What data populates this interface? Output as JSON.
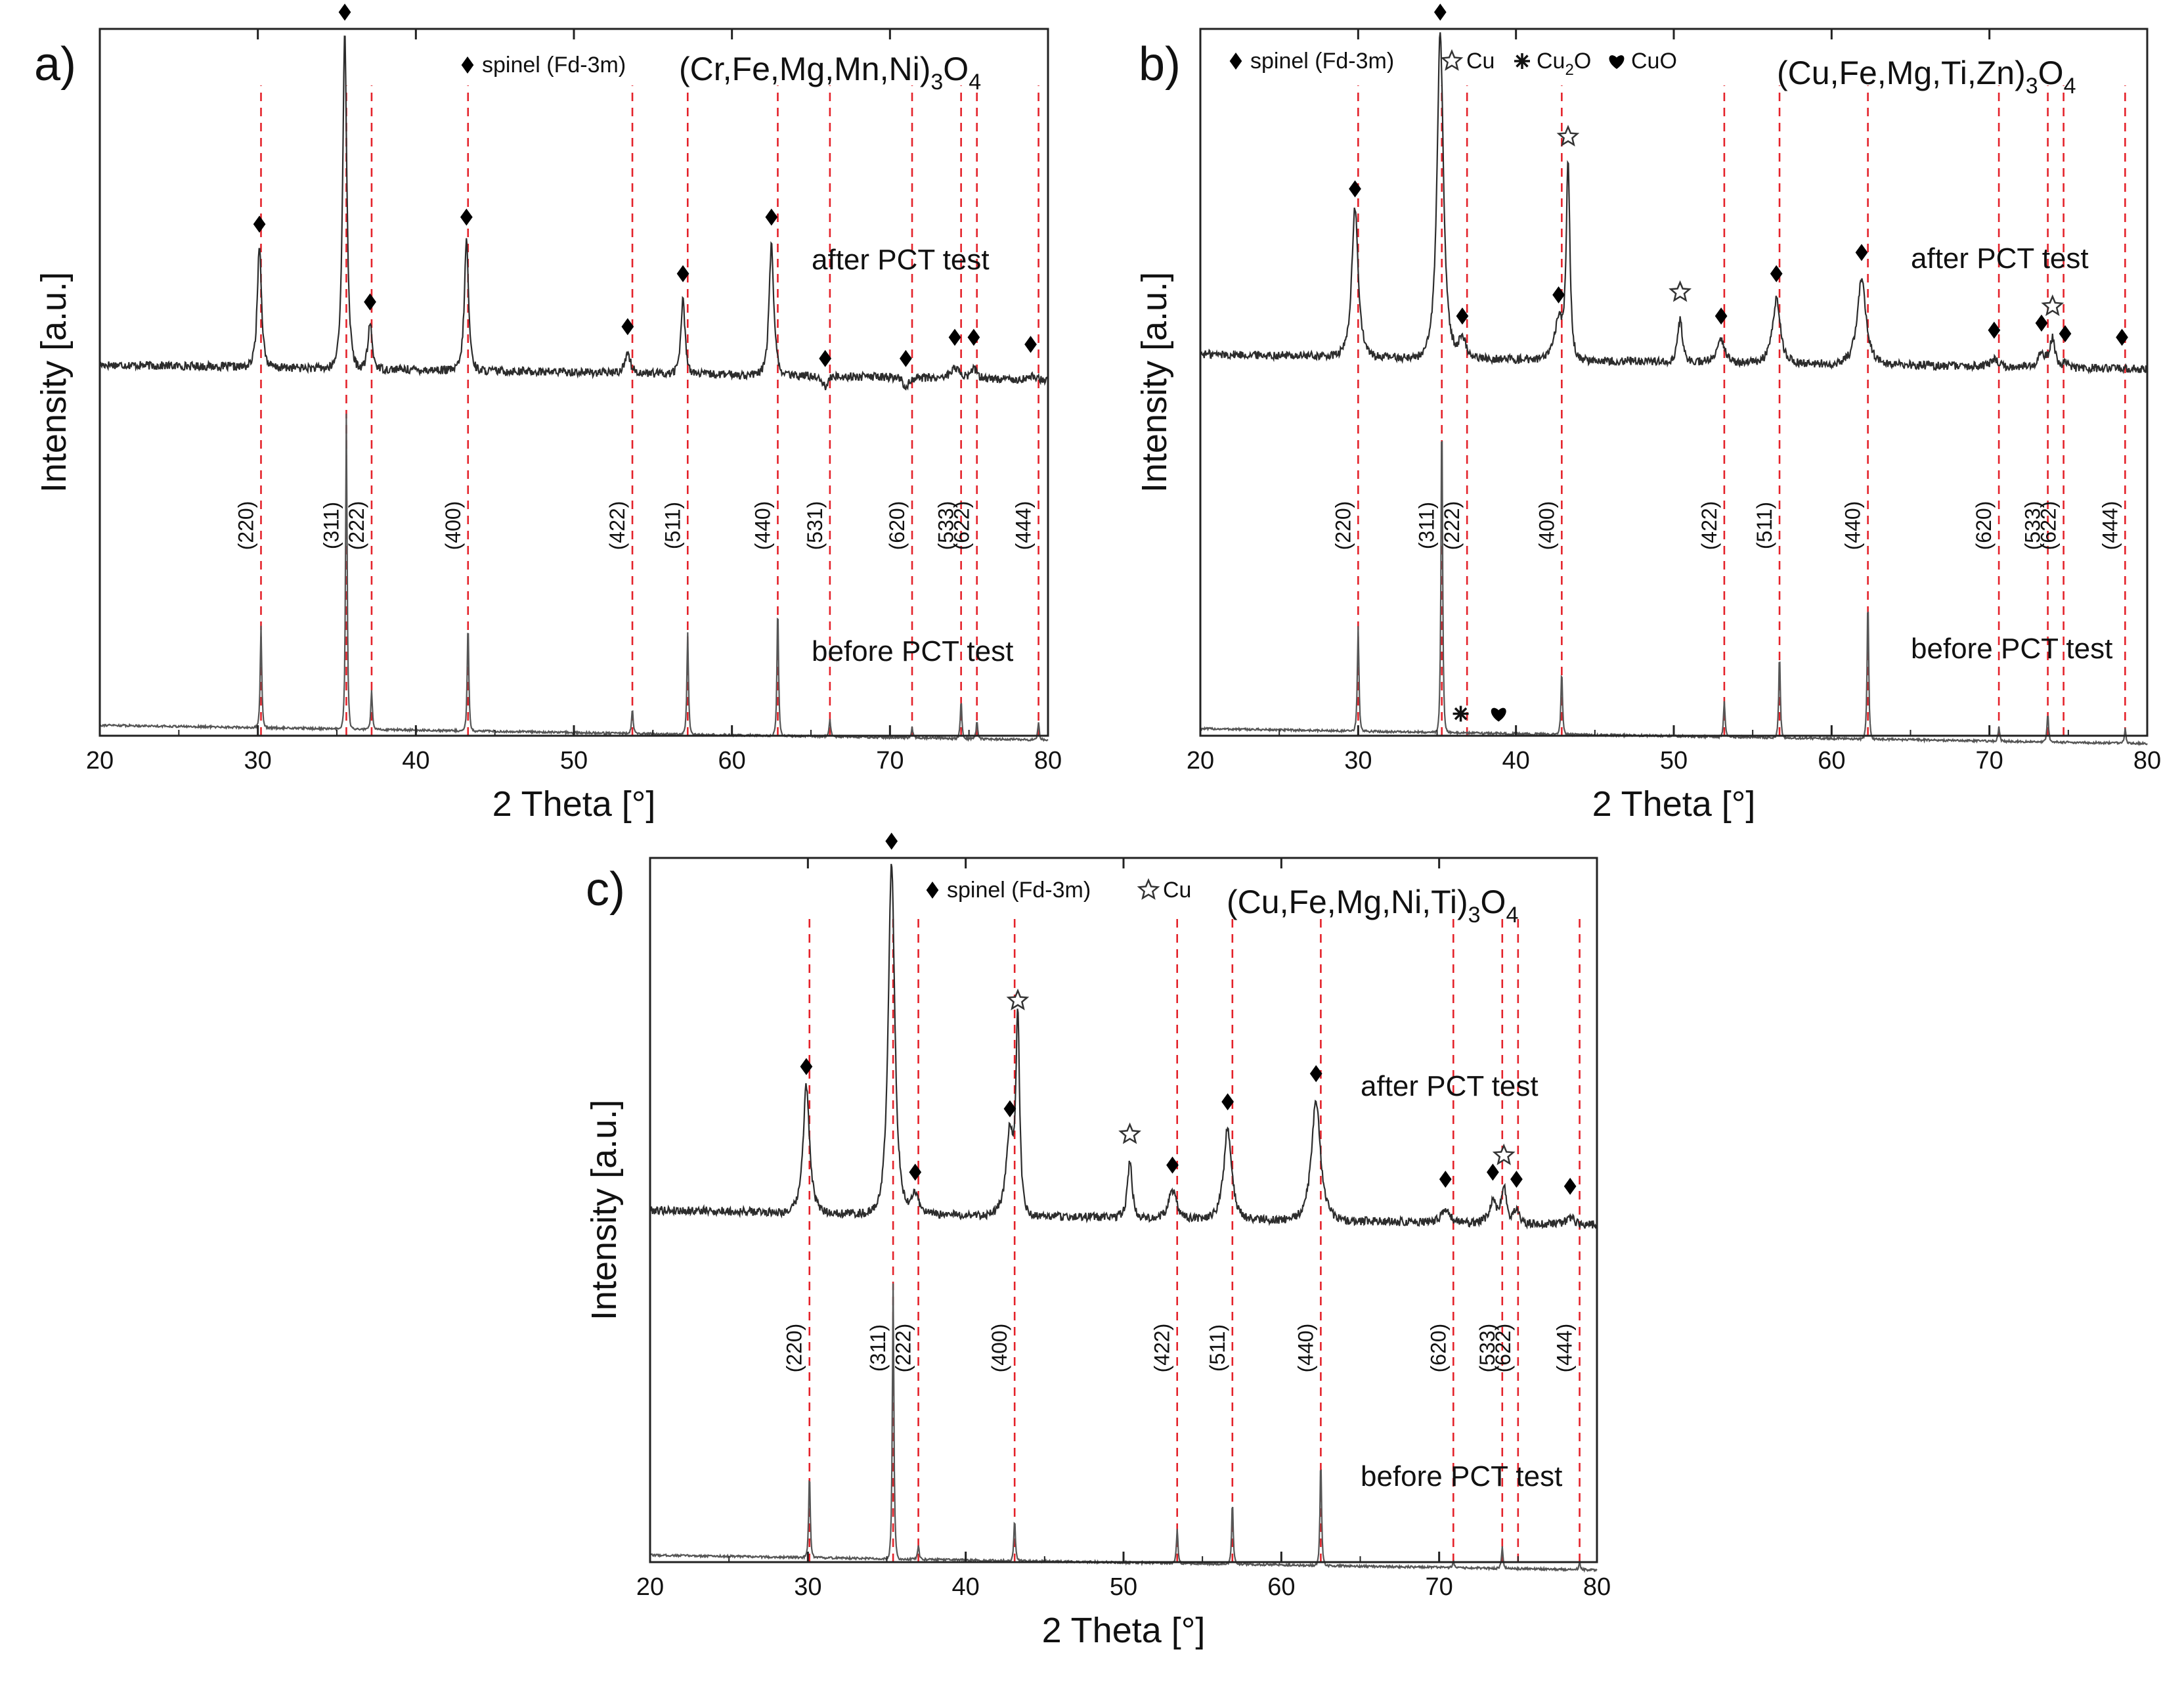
{
  "figure": {
    "chart_data": [
      {
        "type": "line",
        "panel_label": "a)",
        "formula": {
          "prefix": "(Cr,Fe,Mg,Mn,Ni)",
          "sub": "3",
          "mid": "O",
          "sub2": "4"
        },
        "xlabel": "2 Theta [°]",
        "ylabel": "Intensity [a.u.]",
        "xlim": [
          20,
          80
        ],
        "xticks": [
          20,
          30,
          40,
          50,
          60,
          70,
          80
        ],
        "legend": [
          {
            "symbol": "diamond",
            "label": "spinel (Fd-3m)"
          }
        ],
        "curve_labels": {
          "after": "after PCT test",
          "before": "before PCT test"
        },
        "reflections": [
          {
            "hkl": "(220)",
            "two_theta": 30.2
          },
          {
            "hkl": "(311)",
            "two_theta": 35.6
          },
          {
            "hkl": "(222)",
            "two_theta": 37.2
          },
          {
            "hkl": "(400)",
            "two_theta": 43.3
          },
          {
            "hkl": "(422)",
            "two_theta": 53.7
          },
          {
            "hkl": "(511)",
            "two_theta": 57.2
          },
          {
            "hkl": "(440)",
            "two_theta": 62.9
          },
          {
            "hkl": "(531)",
            "two_theta": 66.2
          },
          {
            "hkl": "(620)",
            "two_theta": 71.4
          },
          {
            "hkl": "(533)",
            "two_theta": 74.5
          },
          {
            "hkl": "(622)",
            "two_theta": 75.5
          },
          {
            "hkl": "(444)",
            "two_theta": 79.4
          }
        ],
        "after_baseline": 0.525,
        "after_peaks": [
          {
            "two_theta": 30.1,
            "height": 0.7,
            "width": 0.16,
            "phase": "spinel"
          },
          {
            "two_theta": 35.5,
            "height": 1.0,
            "width": 0.16,
            "phase": "spinel"
          },
          {
            "two_theta": 37.1,
            "height": 0.59,
            "width": 0.16,
            "phase": "spinel"
          },
          {
            "two_theta": 43.2,
            "height": 0.71,
            "width": 0.16,
            "phase": "spinel"
          },
          {
            "two_theta": 53.4,
            "height": 0.555,
            "width": 0.2,
            "phase": "spinel"
          },
          {
            "two_theta": 56.9,
            "height": 0.63,
            "width": 0.16,
            "phase": "spinel"
          },
          {
            "two_theta": 62.5,
            "height": 0.71,
            "width": 0.18,
            "phase": "spinel"
          },
          {
            "two_theta": 65.9,
            "height": 0.51,
            "width": 0.2,
            "phase": "spinel"
          },
          {
            "two_theta": 71.0,
            "height": 0.51,
            "width": 0.2,
            "phase": "spinel"
          },
          {
            "two_theta": 74.1,
            "height": 0.54,
            "width": 0.3,
            "phase": "spinel"
          },
          {
            "two_theta": 75.3,
            "height": 0.54,
            "width": 0.2,
            "phase": "spinel"
          },
          {
            "two_theta": 78.9,
            "height": 0.53,
            "width": 0.2,
            "phase": "spinel"
          }
        ],
        "before_baseline": 0.015,
        "before_peaks": [
          {
            "two_theta": 30.2,
            "height": 0.16,
            "width": 0.06
          },
          {
            "two_theta": 35.6,
            "height": 0.46,
            "width": 0.06
          },
          {
            "two_theta": 37.2,
            "height": 0.07,
            "width": 0.06
          },
          {
            "two_theta": 43.3,
            "height": 0.17,
            "width": 0.06
          },
          {
            "two_theta": 53.7,
            "height": 0.05,
            "width": 0.06
          },
          {
            "two_theta": 57.2,
            "height": 0.16,
            "width": 0.06
          },
          {
            "two_theta": 62.9,
            "height": 0.2,
            "width": 0.06
          },
          {
            "two_theta": 66.2,
            "height": 0.04,
            "width": 0.06
          },
          {
            "two_theta": 71.4,
            "height": 0.03,
            "width": 0.06
          },
          {
            "two_theta": 74.5,
            "height": 0.07,
            "width": 0.06
          },
          {
            "two_theta": 75.5,
            "height": 0.04,
            "width": 0.06
          },
          {
            "two_theta": 79.4,
            "height": 0.04,
            "width": 0.06
          }
        ],
        "extra_markers": []
      },
      {
        "type": "line",
        "panel_label": "b)",
        "formula": {
          "prefix": "(Cu,Fe,Mg,Ti,Zn)",
          "sub": "3",
          "mid": "O",
          "sub2": "4"
        },
        "xlabel": "2 Theta [°]",
        "ylabel": "Intensity [a.u.]",
        "xlim": [
          20,
          80
        ],
        "xticks": [
          20,
          30,
          40,
          50,
          60,
          70,
          80
        ],
        "legend": [
          {
            "symbol": "diamond",
            "label": "spinel (Fd-3m)"
          },
          {
            "symbol": "star",
            "label": "Cu"
          },
          {
            "symbol": "asterisk",
            "label": "Cu",
            "sub": "2",
            "tail": "O"
          },
          {
            "symbol": "heart",
            "label": "CuO"
          }
        ],
        "curve_labels": {
          "after": "after PCT test",
          "before": "before PCT test"
        },
        "reflections": [
          {
            "hkl": "(220)",
            "two_theta": 30.0
          },
          {
            "hkl": "(311)",
            "two_theta": 35.3
          },
          {
            "hkl": "(222)",
            "two_theta": 36.9
          },
          {
            "hkl": "(400)",
            "two_theta": 42.9
          },
          {
            "hkl": "(422)",
            "two_theta": 53.2
          },
          {
            "hkl": "(511)",
            "two_theta": 56.7
          },
          {
            "hkl": "(440)",
            "two_theta": 62.3
          },
          {
            "hkl": "(620)",
            "two_theta": 70.6
          },
          {
            "hkl": "(533)",
            "two_theta": 73.7
          },
          {
            "hkl": "(622)",
            "two_theta": 74.7
          },
          {
            "hkl": "(444)",
            "two_theta": 78.6
          }
        ],
        "after_baseline": 0.54,
        "after_peaks": [
          {
            "two_theta": 29.8,
            "height": 0.75,
            "width": 0.25,
            "phase": "spinel"
          },
          {
            "two_theta": 35.2,
            "height": 1.0,
            "width": 0.25,
            "phase": "spinel"
          },
          {
            "two_theta": 36.6,
            "height": 0.57,
            "width": 0.3,
            "phase": "spinel"
          },
          {
            "two_theta": 42.7,
            "height": 0.6,
            "width": 0.3,
            "phase": "spinel"
          },
          {
            "two_theta": 43.3,
            "height": 0.82,
            "width": 0.14,
            "phase": "cu"
          },
          {
            "two_theta": 50.4,
            "height": 0.6,
            "width": 0.18,
            "phase": "cu"
          },
          {
            "two_theta": 53.0,
            "height": 0.57,
            "width": 0.3,
            "phase": "spinel"
          },
          {
            "two_theta": 56.5,
            "height": 0.63,
            "width": 0.3,
            "phase": "spinel"
          },
          {
            "two_theta": 61.9,
            "height": 0.66,
            "width": 0.35,
            "phase": "spinel"
          },
          {
            "two_theta": 70.3,
            "height": 0.55,
            "width": 0.3,
            "phase": "spinel"
          },
          {
            "two_theta": 73.3,
            "height": 0.56,
            "width": 0.3,
            "phase": "spinel"
          },
          {
            "two_theta": 74.0,
            "height": 0.58,
            "width": 0.2,
            "phase": "cu"
          },
          {
            "two_theta": 74.8,
            "height": 0.545,
            "width": 0.2,
            "phase": "spinel"
          },
          {
            "two_theta": 78.4,
            "height": 0.54,
            "width": 0.3,
            "phase": "spinel"
          }
        ],
        "before_baseline": 0.01,
        "before_peaks": [
          {
            "two_theta": 30.0,
            "height": 0.16,
            "width": 0.06
          },
          {
            "two_theta": 35.3,
            "height": 0.47,
            "width": 0.06
          },
          {
            "two_theta": 42.9,
            "height": 0.1,
            "width": 0.06
          },
          {
            "two_theta": 53.2,
            "height": 0.06,
            "width": 0.06
          },
          {
            "two_theta": 56.7,
            "height": 0.13,
            "width": 0.06
          },
          {
            "two_theta": 62.3,
            "height": 0.21,
            "width": 0.06
          },
          {
            "two_theta": 70.6,
            "height": 0.03,
            "width": 0.06
          },
          {
            "two_theta": 73.7,
            "height": 0.05,
            "width": 0.06
          },
          {
            "two_theta": 78.6,
            "height": 0.03,
            "width": 0.06
          }
        ],
        "extra_markers": [
          {
            "symbol": "asterisk",
            "two_theta": 36.5,
            "level": 0.02
          },
          {
            "symbol": "heart",
            "two_theta": 38.9,
            "level": 0.02
          }
        ]
      },
      {
        "type": "line",
        "panel_label": "c)",
        "formula": {
          "prefix": "(Cu,Fe,Mg,Ni,Ti)",
          "sub": "3",
          "mid": "O",
          "sub2": "4"
        },
        "xlabel": "2 Theta [°]",
        "ylabel": "Intensity [a.u.]",
        "xlim": [
          20,
          80
        ],
        "xticks": [
          20,
          30,
          40,
          50,
          60,
          70,
          80
        ],
        "legend": [
          {
            "symbol": "diamond",
            "label": "spinel (Fd-3m)"
          },
          {
            "symbol": "star",
            "label": "Cu"
          }
        ],
        "curve_labels": {
          "after": "after PCT test",
          "before": "before PCT test"
        },
        "reflections": [
          {
            "hkl": "(220)",
            "two_theta": 30.1
          },
          {
            "hkl": "(311)",
            "two_theta": 35.4
          },
          {
            "hkl": "(222)",
            "two_theta": 37.0
          },
          {
            "hkl": "(400)",
            "two_theta": 43.1
          },
          {
            "hkl": "(422)",
            "two_theta": 53.4
          },
          {
            "hkl": "(511)",
            "two_theta": 56.9
          },
          {
            "hkl": "(440)",
            "two_theta": 62.5
          },
          {
            "hkl": "(620)",
            "two_theta": 70.9
          },
          {
            "hkl": "(533)",
            "two_theta": 74.0
          },
          {
            "hkl": "(622)",
            "two_theta": 75.0
          },
          {
            "hkl": "(444)",
            "two_theta": 78.9
          }
        ],
        "after_baseline": 0.5,
        "after_peaks": [
          {
            "two_theta": 29.9,
            "height": 0.68,
            "width": 0.25,
            "phase": "spinel"
          },
          {
            "two_theta": 35.3,
            "height": 1.0,
            "width": 0.25,
            "phase": "spinel"
          },
          {
            "two_theta": 36.8,
            "height": 0.53,
            "width": 0.3,
            "phase": "spinel"
          },
          {
            "two_theta": 42.8,
            "height": 0.62,
            "width": 0.3,
            "phase": "spinel"
          },
          {
            "two_theta": 43.3,
            "height": 0.77,
            "width": 0.14,
            "phase": "cu"
          },
          {
            "two_theta": 50.4,
            "height": 0.58,
            "width": 0.18,
            "phase": "cu"
          },
          {
            "two_theta": 53.1,
            "height": 0.54,
            "width": 0.3,
            "phase": "spinel"
          },
          {
            "two_theta": 56.6,
            "height": 0.63,
            "width": 0.3,
            "phase": "spinel"
          },
          {
            "two_theta": 62.2,
            "height": 0.67,
            "width": 0.35,
            "phase": "spinel"
          },
          {
            "two_theta": 70.4,
            "height": 0.52,
            "width": 0.3,
            "phase": "spinel"
          },
          {
            "two_theta": 73.4,
            "height": 0.53,
            "width": 0.3,
            "phase": "spinel"
          },
          {
            "two_theta": 74.1,
            "height": 0.55,
            "width": 0.2,
            "phase": "cu"
          },
          {
            "two_theta": 74.9,
            "height": 0.52,
            "width": 0.2,
            "phase": "spinel"
          },
          {
            "two_theta": 78.3,
            "height": 0.51,
            "width": 0.3,
            "phase": "spinel"
          }
        ],
        "before_baseline": 0.01,
        "before_peaks": [
          {
            "two_theta": 30.1,
            "height": 0.13,
            "width": 0.06
          },
          {
            "two_theta": 35.4,
            "height": 0.4,
            "width": 0.06
          },
          {
            "two_theta": 37.0,
            "height": 0.03,
            "width": 0.06
          },
          {
            "two_theta": 43.1,
            "height": 0.07,
            "width": 0.06
          },
          {
            "two_theta": 53.4,
            "height": 0.06,
            "width": 0.06
          },
          {
            "two_theta": 56.9,
            "height": 0.1,
            "width": 0.06
          },
          {
            "two_theta": 62.5,
            "height": 0.16,
            "width": 0.06
          },
          {
            "two_theta": 70.9,
            "height": 0.02,
            "width": 0.06
          },
          {
            "two_theta": 74.0,
            "height": 0.04,
            "width": 0.06
          },
          {
            "two_theta": 78.9,
            "height": 0.02,
            "width": 0.06
          }
        ],
        "extra_markers": []
      }
    ]
  }
}
